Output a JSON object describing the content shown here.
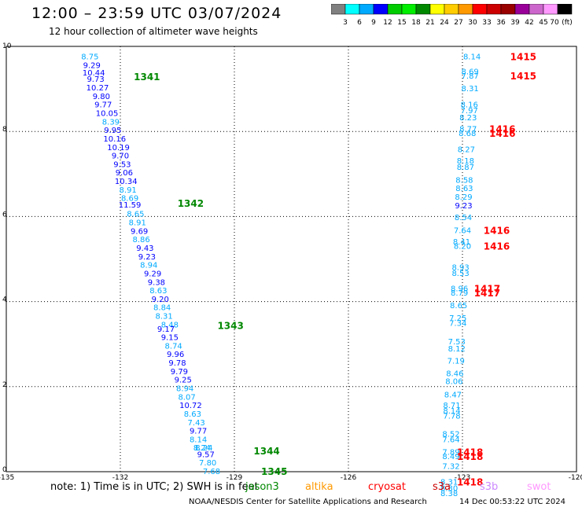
{
  "header": {
    "title": "12:00 – 23:59 UTC 03/07/2024",
    "subtitle": "12 hour collection of altimeter wave heights"
  },
  "color_scale": {
    "ticks": [
      "3",
      "6",
      "9",
      "12",
      "15",
      "18",
      "21",
      "24",
      "27",
      "30",
      "33",
      "36",
      "39",
      "42",
      "45",
      "70"
    ],
    "unit": "(ft)",
    "colors": [
      "#808080",
      "#00ffff",
      "#00aaff",
      "#0000ff",
      "#00cc00",
      "#00ee00",
      "#008800",
      "#ffff00",
      "#ffcc00",
      "#ff9900",
      "#ff0000",
      "#cc0000",
      "#990000",
      "#990099",
      "#cc66cc",
      "#ff99ff",
      "#000000"
    ]
  },
  "notes": {
    "note_text": "note:  1) Time is in UTC; 2) SWH is in feet",
    "sats": [
      {
        "label": "jason3",
        "color": "#008800"
      },
      {
        "label": "altika",
        "color": "#ff9900"
      },
      {
        "label": "cryosat",
        "color": "#ff0000"
      },
      {
        "label": "s3a",
        "color": "#cc0000"
      },
      {
        "label": "s3b",
        "color": "#cc88ff"
      },
      {
        "label": "swot",
        "color": "#ff99ff"
      }
    ]
  },
  "footer": {
    "credit": "NOAA/NESDIS Center for Satellite Applications and Research",
    "timestamp": "14 Dec 00:53:22 UTC 2024"
  },
  "chart_data": {
    "type": "scatter",
    "title": "12:00 – 23:59 UTC 03/07/2024",
    "subtitle": "12 hour collection of altimeter wave heights",
    "xlim": [
      -135,
      -120
    ],
    "ylim": [
      0,
      10
    ],
    "xticks": [
      "-135",
      "-132",
      "-129",
      "-126",
      "-123",
      "-120"
    ],
    "yticks": [
      "0",
      "2",
      "4",
      "6",
      "8",
      "10"
    ],
    "grid": true,
    "colors": {
      "light": "#00aaff",
      "dark": "#0000ff",
      "pass_j3": "#008800",
      "pass_red": "#ff0000"
    },
    "track1_points": [
      {
        "x": -132.8,
        "y": 9.75,
        "v": "8.75",
        "c": "light"
      },
      {
        "x": -132.75,
        "y": 9.55,
        "v": "9.29",
        "c": "dark"
      },
      {
        "x": -132.7,
        "y": 9.37,
        "v": "10.44",
        "c": "dark"
      },
      {
        "x": -132.65,
        "y": 9.22,
        "v": "9.73",
        "c": "dark"
      },
      {
        "x": -132.6,
        "y": 9.02,
        "v": "10.27",
        "c": "dark"
      },
      {
        "x": -132.5,
        "y": 8.82,
        "v": "9.80",
        "c": "dark"
      },
      {
        "x": -132.45,
        "y": 8.62,
        "v": "9.77",
        "c": "dark"
      },
      {
        "x": -132.35,
        "y": 8.42,
        "v": "10.05",
        "c": "dark"
      },
      {
        "x": -132.25,
        "y": 8.22,
        "v": "8.39",
        "c": "light"
      },
      {
        "x": -132.2,
        "y": 8.02,
        "v": "9.95",
        "c": "dark"
      },
      {
        "x": -132.15,
        "y": 7.82,
        "v": "10.16",
        "c": "dark"
      },
      {
        "x": -132.05,
        "y": 7.62,
        "v": "10.19",
        "c": "dark"
      },
      {
        "x": -132.0,
        "y": 7.42,
        "v": "9.70",
        "c": "dark"
      },
      {
        "x": -131.95,
        "y": 7.22,
        "v": "9.53",
        "c": "dark"
      },
      {
        "x": -131.9,
        "y": 7.02,
        "v": "9.06",
        "c": "dark"
      },
      {
        "x": -131.85,
        "y": 6.82,
        "v": "10.34",
        "c": "dark"
      },
      {
        "x": -131.8,
        "y": 6.62,
        "v": "8.91",
        "c": "light"
      },
      {
        "x": -131.75,
        "y": 6.42,
        "v": "8.69",
        "c": "light"
      },
      {
        "x": -131.75,
        "y": 6.27,
        "v": "11.59",
        "c": "dark"
      },
      {
        "x": -131.6,
        "y": 6.05,
        "v": "8.65",
        "c": "light"
      },
      {
        "x": -131.55,
        "y": 5.85,
        "v": "8.91",
        "c": "light"
      },
      {
        "x": -131.5,
        "y": 5.65,
        "v": "9.69",
        "c": "dark"
      },
      {
        "x": -131.45,
        "y": 5.45,
        "v": "8.86",
        "c": "light"
      },
      {
        "x": -131.35,
        "y": 5.25,
        "v": "9.43",
        "c": "dark"
      },
      {
        "x": -131.3,
        "y": 5.05,
        "v": "9.23",
        "c": "dark"
      },
      {
        "x": -131.25,
        "y": 4.85,
        "v": "8.94",
        "c": "light"
      },
      {
        "x": -131.15,
        "y": 4.65,
        "v": "9.29",
        "c": "dark"
      },
      {
        "x": -131.05,
        "y": 4.45,
        "v": "9.38",
        "c": "dark"
      },
      {
        "x": -131.0,
        "y": 4.25,
        "v": "8.63",
        "c": "light"
      },
      {
        "x": -130.95,
        "y": 4.05,
        "v": "9.20",
        "c": "dark"
      },
      {
        "x": -130.9,
        "y": 3.85,
        "v": "8.84",
        "c": "light"
      },
      {
        "x": -130.85,
        "y": 3.65,
        "v": "8.31",
        "c": "light"
      },
      {
        "x": -130.7,
        "y": 3.45,
        "v": "8.48",
        "c": "light"
      },
      {
        "x": -130.8,
        "y": 3.35,
        "v": "9.17",
        "c": "dark"
      },
      {
        "x": -130.7,
        "y": 3.15,
        "v": "9.15",
        "c": "dark"
      },
      {
        "x": -130.6,
        "y": 2.95,
        "v": "8.74",
        "c": "light"
      },
      {
        "x": -130.55,
        "y": 2.75,
        "v": "9.96",
        "c": "dark"
      },
      {
        "x": -130.5,
        "y": 2.55,
        "v": "9.78",
        "c": "dark"
      },
      {
        "x": -130.45,
        "y": 2.35,
        "v": "9.79",
        "c": "dark"
      },
      {
        "x": -130.35,
        "y": 2.15,
        "v": "9.25",
        "c": "dark"
      },
      {
        "x": -130.3,
        "y": 1.95,
        "v": "8.94",
        "c": "light"
      },
      {
        "x": -130.25,
        "y": 1.75,
        "v": "8.07",
        "c": "light"
      },
      {
        "x": -130.15,
        "y": 1.55,
        "v": "10.72",
        "c": "dark"
      },
      {
        "x": -130.1,
        "y": 1.35,
        "v": "8.63",
        "c": "light"
      },
      {
        "x": -130.0,
        "y": 1.15,
        "v": "7.43",
        "c": "light"
      },
      {
        "x": -129.95,
        "y": 0.95,
        "v": "9.77",
        "c": "dark"
      },
      {
        "x": -129.95,
        "y": 0.75,
        "v": "8.14",
        "c": "light"
      },
      {
        "x": -129.85,
        "y": 0.55,
        "v": "8.24",
        "c": "light"
      },
      {
        "x": -129.8,
        "y": 0.55,
        "v": "8.24",
        "c": "light"
      },
      {
        "x": -129.75,
        "y": 0.4,
        "v": "9.57",
        "c": "dark"
      },
      {
        "x": -129.7,
        "y": 0.2,
        "v": "7.80",
        "c": "light"
      },
      {
        "x": -129.6,
        "y": 0.0,
        "v": "7.68",
        "c": "light"
      }
    ],
    "track2_points": [
      {
        "x": -122.75,
        "y": 9.75,
        "v": "8.14",
        "c": "light"
      },
      {
        "x": -122.8,
        "y": 9.4,
        "v": "8.69",
        "c": "light"
      },
      {
        "x": -122.8,
        "y": 9.3,
        "v": "7.87",
        "c": "light"
      },
      {
        "x": -122.8,
        "y": 9.0,
        "v": "8.31",
        "c": "light"
      },
      {
        "x": -122.82,
        "y": 8.62,
        "v": "8.16",
        "c": "light"
      },
      {
        "x": -122.82,
        "y": 8.48,
        "v": "7.97",
        "c": "light"
      },
      {
        "x": -122.85,
        "y": 8.32,
        "v": "8.23",
        "c": "light"
      },
      {
        "x": -122.85,
        "y": 8.05,
        "v": "8.77",
        "c": "light"
      },
      {
        "x": -122.87,
        "y": 7.95,
        "v": "8.68",
        "c": "light"
      },
      {
        "x": -122.9,
        "y": 7.57,
        "v": "8.27",
        "c": "light"
      },
      {
        "x": -122.92,
        "y": 7.3,
        "v": "8.18",
        "c": "light"
      },
      {
        "x": -122.92,
        "y": 7.15,
        "v": "8.87",
        "c": "light"
      },
      {
        "x": -122.95,
        "y": 6.85,
        "v": "8.58",
        "c": "light"
      },
      {
        "x": -122.95,
        "y": 6.65,
        "v": "8.63",
        "c": "light"
      },
      {
        "x": -122.97,
        "y": 6.45,
        "v": "8.29",
        "c": "light"
      },
      {
        "x": -122.97,
        "y": 6.25,
        "v": "9.23",
        "c": "dark"
      },
      {
        "x": -122.98,
        "y": 5.97,
        "v": "8.54",
        "c": "light"
      },
      {
        "x": -123.0,
        "y": 5.67,
        "v": "7.64",
        "c": "light"
      },
      {
        "x": -123.02,
        "y": 5.4,
        "v": "8.41",
        "c": "light"
      },
      {
        "x": -123.0,
        "y": 5.3,
        "v": "8.20",
        "c": "light"
      },
      {
        "x": -123.05,
        "y": 4.8,
        "v": "8.93",
        "c": "light"
      },
      {
        "x": -123.05,
        "y": 4.66,
        "v": "8.53",
        "c": "light"
      },
      {
        "x": -123.08,
        "y": 4.3,
        "v": "8.96",
        "c": "light"
      },
      {
        "x": -123.08,
        "y": 4.2,
        "v": "8.79",
        "c": "light"
      },
      {
        "x": -123.1,
        "y": 3.9,
        "v": "8.65",
        "c": "light"
      },
      {
        "x": -123.12,
        "y": 3.6,
        "v": "7.25",
        "c": "light"
      },
      {
        "x": -123.12,
        "y": 3.48,
        "v": "7.34",
        "c": "light"
      },
      {
        "x": -123.15,
        "y": 3.05,
        "v": "7.53",
        "c": "light"
      },
      {
        "x": -123.15,
        "y": 2.88,
        "v": "8.12",
        "c": "light"
      },
      {
        "x": -123.17,
        "y": 2.6,
        "v": "7.19",
        "c": "light"
      },
      {
        "x": -123.2,
        "y": 2.3,
        "v": "8.46",
        "c": "light"
      },
      {
        "x": -123.22,
        "y": 2.12,
        "v": "8.06",
        "c": "light"
      },
      {
        "x": -123.25,
        "y": 1.8,
        "v": "8.47",
        "c": "light"
      },
      {
        "x": -123.28,
        "y": 1.55,
        "v": "8.71",
        "c": "light"
      },
      {
        "x": -123.28,
        "y": 1.42,
        "v": "8.14",
        "c": "light"
      },
      {
        "x": -123.28,
        "y": 1.3,
        "v": "7.78",
        "c": "light"
      },
      {
        "x": -123.3,
        "y": 0.88,
        "v": "8.52",
        "c": "light"
      },
      {
        "x": -123.3,
        "y": 0.75,
        "v": "7.64",
        "c": "light"
      },
      {
        "x": -123.3,
        "y": 0.45,
        "v": "7.89",
        "c": "light"
      },
      {
        "x": -123.3,
        "y": 0.35,
        "v": "8.49",
        "c": "light"
      },
      {
        "x": -123.3,
        "y": 0.12,
        "v": "7.32",
        "c": "light"
      },
      {
        "x": -123.35,
        "y": -0.25,
        "v": "8.31",
        "c": "light"
      },
      {
        "x": -123.35,
        "y": -0.4,
        "v": "8.30",
        "c": "light"
      },
      {
        "x": -123.35,
        "y": -0.52,
        "v": "8.38",
        "c": "light"
      }
    ],
    "pass_labels": [
      {
        "x": -131.3,
        "y": 9.28,
        "label": "1341",
        "c": "pass_j3"
      },
      {
        "x": -130.15,
        "y": 6.3,
        "label": "1342",
        "c": "pass_j3"
      },
      {
        "x": -129.1,
        "y": 3.43,
        "label": "1343",
        "c": "pass_j3"
      },
      {
        "x": -128.15,
        "y": 0.48,
        "label": "1344",
        "c": "pass_j3"
      },
      {
        "x": -127.95,
        "y": 0.0,
        "label": "1345",
        "c": "pass_j3"
      },
      {
        "x": -121.4,
        "y": 9.75,
        "label": "1415",
        "c": "pass_red"
      },
      {
        "x": -121.4,
        "y": 9.3,
        "label": "1415",
        "c": "pass_red"
      },
      {
        "x": -121.95,
        "y": 8.05,
        "label": "1416",
        "c": "pass_red"
      },
      {
        "x": -121.95,
        "y": 7.95,
        "label": "1416",
        "c": "pass_red"
      },
      {
        "x": -122.1,
        "y": 5.67,
        "label": "1416",
        "c": "pass_red"
      },
      {
        "x": -122.1,
        "y": 5.3,
        "label": "1416",
        "c": "pass_red"
      },
      {
        "x": -122.35,
        "y": 4.3,
        "label": "1417",
        "c": "pass_red"
      },
      {
        "x": -122.35,
        "y": 4.2,
        "label": "1417",
        "c": "pass_red"
      },
      {
        "x": -122.8,
        "y": 0.45,
        "label": "1418",
        "c": "pass_red"
      },
      {
        "x": -122.8,
        "y": 0.35,
        "label": "1418",
        "c": "pass_red"
      },
      {
        "x": -122.8,
        "y": -0.25,
        "label": "1418",
        "c": "pass_red"
      }
    ]
  }
}
